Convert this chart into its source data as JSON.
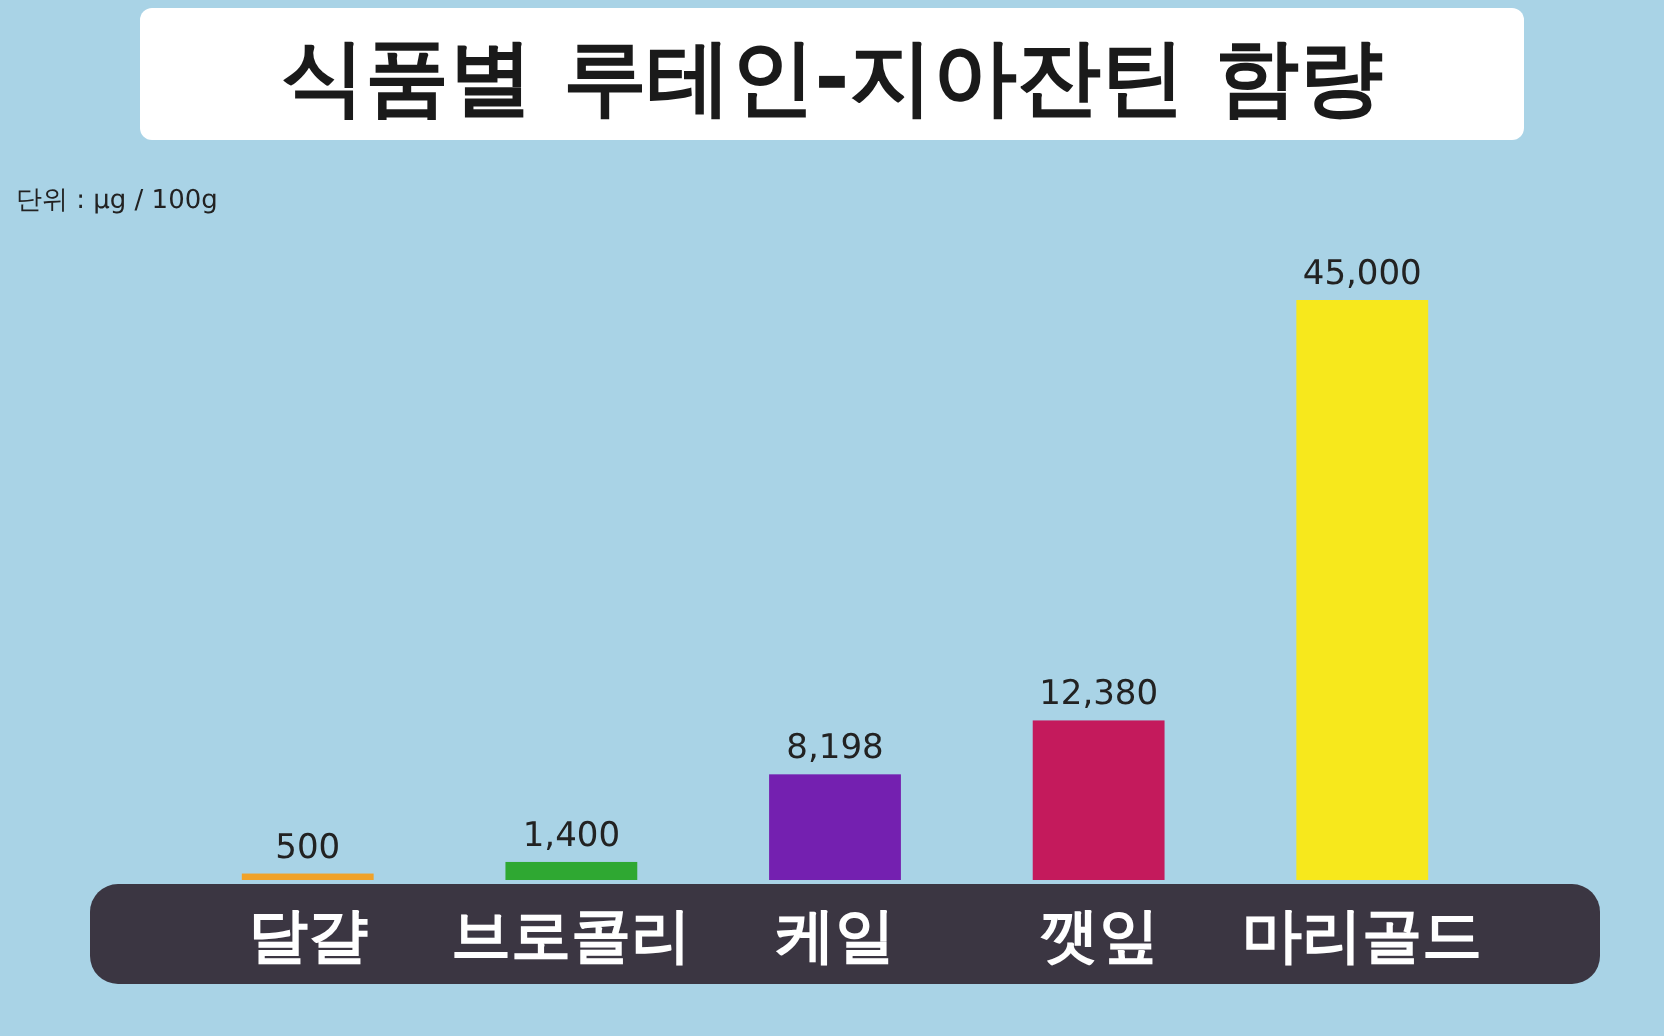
{
  "chart_data": {
    "type": "bar",
    "title": "식품별 루테인-지아잔틴 함량",
    "annotations": [
      "단위 : μg / 100g"
    ],
    "categories": [
      "달걀",
      "브로콜리",
      "케일",
      "깻잎",
      "마리골드"
    ],
    "values": [
      500,
      1400,
      8198,
      12380,
      45000
    ],
    "colors": [
      "#f0a22a",
      "#2fa832",
      "#7420b0",
      "#c41a5c",
      "#f7e81c"
    ],
    "value_labels": [
      "500",
      "1,400",
      "8,198",
      "12,380",
      "45,000"
    ]
  }
}
